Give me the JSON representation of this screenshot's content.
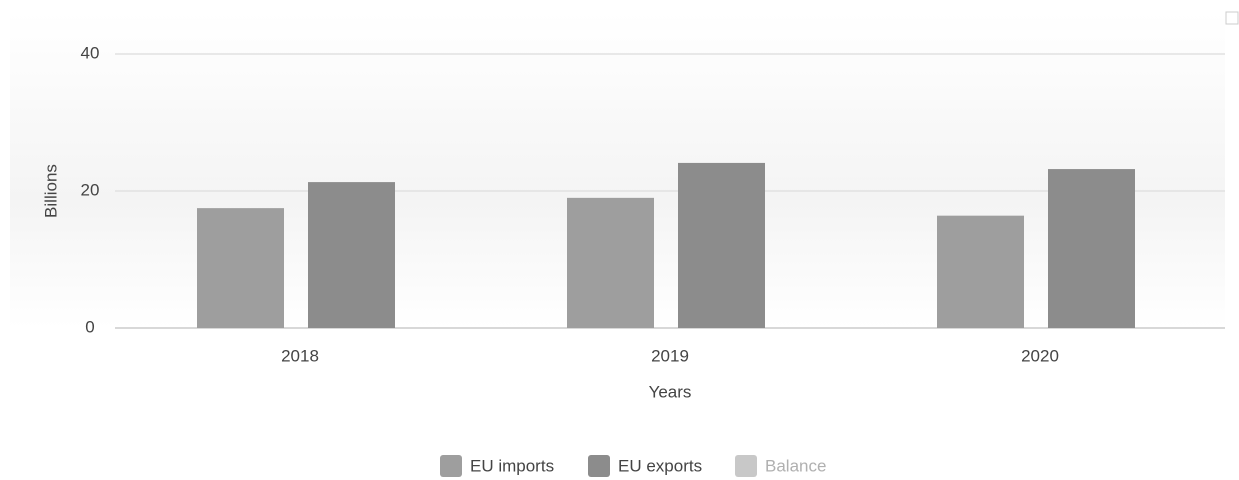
{
  "chart_data": {
    "type": "bar",
    "categories": [
      "2018",
      "2019",
      "2020"
    ],
    "series": [
      {
        "name": "EU imports",
        "color": "#9e9e9e",
        "values": [
          17.5,
          19.0,
          16.4
        ]
      },
      {
        "name": "EU exports",
        "color": "#8c8c8c",
        "values": [
          21.3,
          24.1,
          23.2
        ]
      },
      {
        "name": "Balance",
        "color": "#c8c8c8",
        "values": [
          null,
          null,
          null
        ],
        "hidden": true
      }
    ],
    "y_label": "Billions",
    "x_label": "Years",
    "ylim": [
      0,
      40
    ],
    "yticks": [
      0,
      20,
      40
    ],
    "grid": true,
    "legend": "bottom"
  }
}
